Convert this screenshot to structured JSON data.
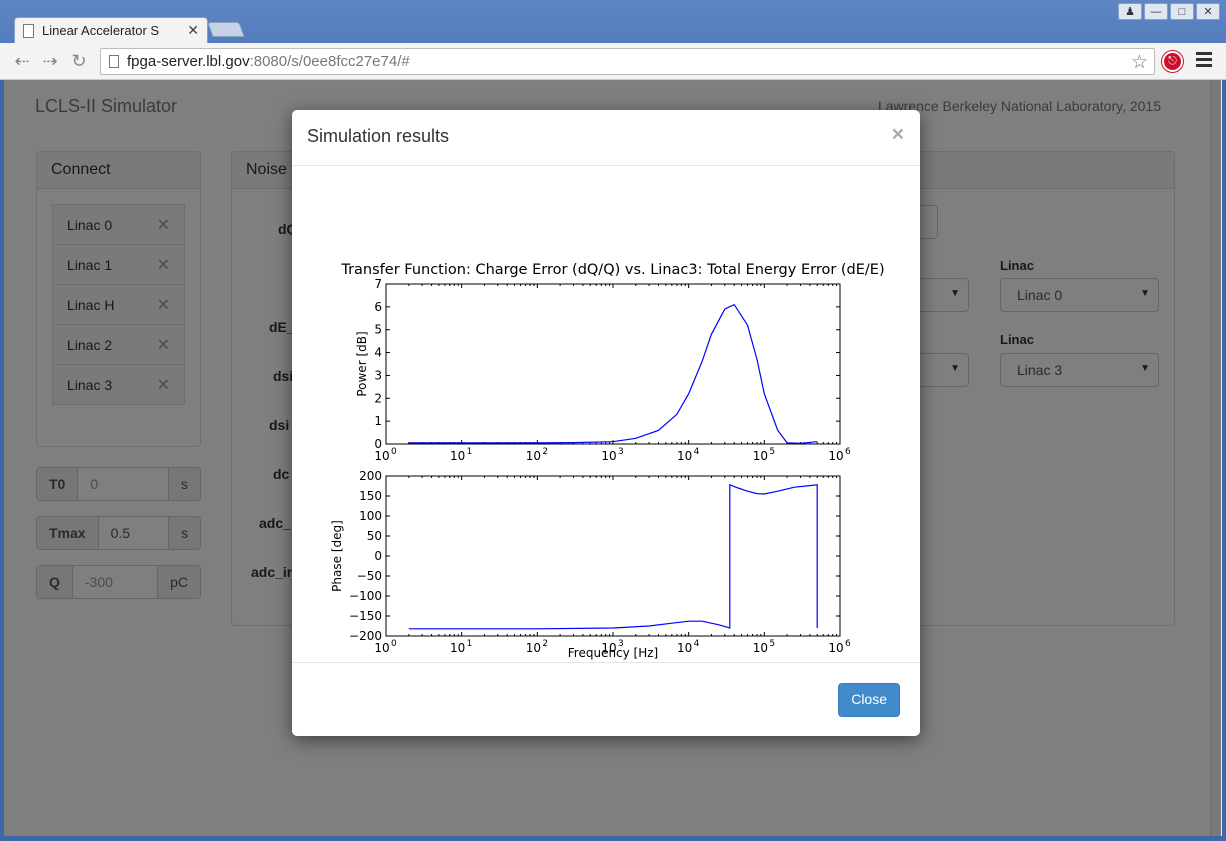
{
  "browser": {
    "tab_title": "Linear Accelerator S",
    "url_host": "fpga-server.lbl.gov",
    "url_rest": ":8080/s/0ee8fcc27e74/#"
  },
  "page": {
    "title": "LCLS-II Simulator",
    "lab": "Lawrence Berkeley National Laboratory, 2015",
    "connect": {
      "heading": "Connect",
      "items": [
        {
          "label": "Linac 0"
        },
        {
          "label": "Linac 1"
        },
        {
          "label": "Linac H"
        },
        {
          "label": "Linac 2"
        },
        {
          "label": "Linac 3"
        }
      ]
    },
    "params": {
      "t0": {
        "label": "T0",
        "placeholder": "0",
        "unit": "s"
      },
      "tmax": {
        "label": "Tmax",
        "value": "0.5",
        "unit": "s"
      },
      "q": {
        "label": "Q",
        "placeholder": "-300",
        "unit": "pC"
      }
    },
    "noise": {
      "heading": "Noise",
      "labels": [
        "dQ",
        "dE_",
        "dsi",
        "dsi",
        "dc",
        "adc_",
        "adc_in"
      ]
    },
    "selects": [
      {
        "label": "Linac",
        "value": "Linac 0"
      },
      {
        "label": "Linac",
        "value": "Linac 3"
      }
    ]
  },
  "modal": {
    "title": "Simulation results",
    "close_label": "Close"
  },
  "chart_data": {
    "type": "line",
    "title": "Transfer Function: Charge Error (dQ/Q) vs. Linac3: Total Energy Error (dE/E)",
    "xlabel": "Frequency [Hz]",
    "xscale": "log",
    "xlim": [
      1,
      1000000
    ],
    "x_ticks": [
      "10",
      "10",
      "10",
      "10",
      "10",
      "10",
      "10"
    ],
    "x_tick_exponents": [
      "0",
      "1",
      "2",
      "3",
      "4",
      "5",
      "6"
    ],
    "color": "#0000ff",
    "panels": [
      {
        "ylabel": "Power [dB]",
        "ylim": [
          0,
          7
        ],
        "y_ticks": [
          "0",
          "1",
          "2",
          "3",
          "4",
          "5",
          "6",
          "7"
        ],
        "x": [
          2,
          10,
          100,
          300,
          1000,
          2000,
          4000,
          7000,
          10000,
          15000,
          20000,
          30000,
          40000,
          60000,
          80000,
          100000,
          150000,
          200000,
          300000,
          500000
        ],
        "y": [
          0.05,
          0.05,
          0.05,
          0.06,
          0.1,
          0.25,
          0.6,
          1.3,
          2.2,
          3.6,
          4.8,
          5.9,
          6.1,
          5.2,
          3.7,
          2.2,
          0.6,
          0.05,
          0.03,
          0.1
        ]
      },
      {
        "ylabel": "Phase [deg]",
        "ylim": [
          -200,
          200
        ],
        "y_ticks": [
          "−200",
          "−150",
          "−100",
          "−50",
          "0",
          "50",
          "100",
          "150",
          "200"
        ],
        "x": [
          2,
          10,
          100,
          1000,
          3000,
          6000,
          10000,
          15000,
          25000,
          35000,
          35001,
          45000,
          60000,
          80000,
          100000,
          150000,
          250000,
          400000,
          500000,
          500001
        ],
        "y": [
          -182,
          -182,
          -182,
          -180,
          -175,
          -168,
          -163,
          -163,
          -172,
          -180,
          178,
          170,
          162,
          156,
          155,
          162,
          172,
          176,
          178,
          -180
        ]
      }
    ]
  }
}
